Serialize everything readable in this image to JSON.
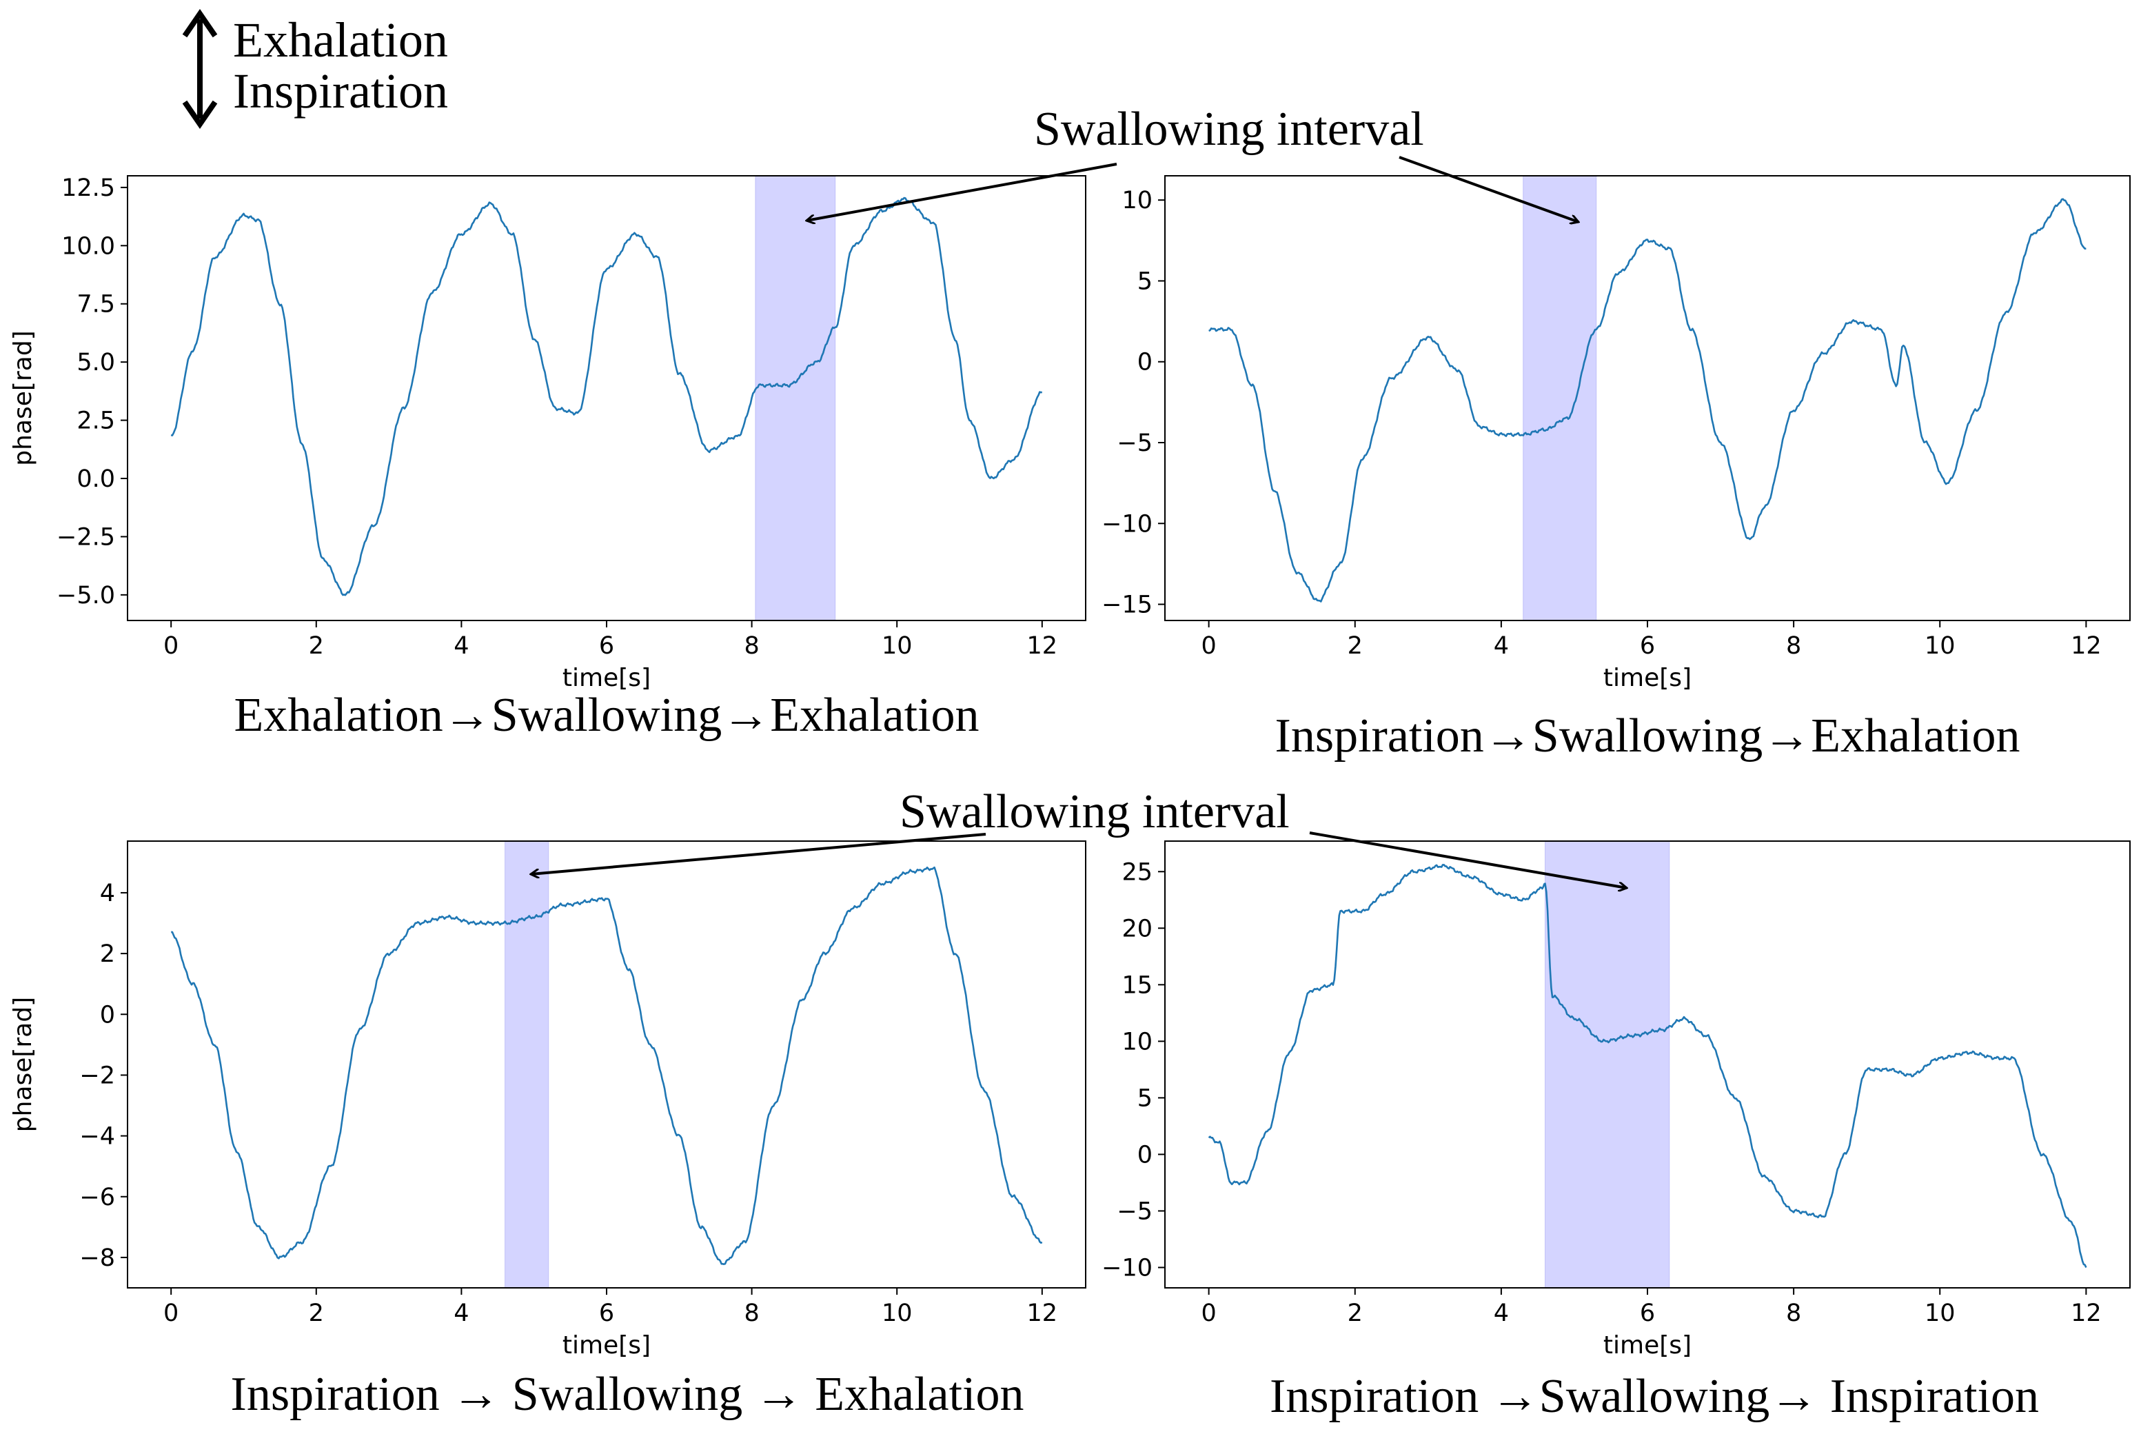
{
  "legend": {
    "up_label": "Exhalation",
    "down_label": "Inspiration"
  },
  "annotations": {
    "top": "Swallowing interval",
    "bottom": "Swallowing interval"
  },
  "colors": {
    "line": "#1f77b4",
    "shade": "#aaaaff"
  },
  "chart_data": [
    {
      "id": "tl",
      "type": "line",
      "caption": "Exhalation→Swallowing→Exhalation",
      "xlabel": "time[s]",
      "ylabel": "phase[rad]",
      "xlim": [
        -0.6,
        12.6
      ],
      "ylim": [
        -6.1,
        13.0
      ],
      "xticks": [
        0,
        2,
        4,
        6,
        8,
        10,
        12
      ],
      "yticks": [
        -5.0,
        -2.5,
        0.0,
        2.5,
        5.0,
        7.5,
        10.0,
        12.5
      ],
      "ytick_labels": [
        "−5.0",
        "−2.5",
        "0.0",
        "2.5",
        "5.0",
        "7.5",
        "10.0",
        "12.5"
      ],
      "swallow_interval": [
        8.05,
        9.15
      ],
      "series": [
        {
          "name": "phase",
          "x": [
            0,
            0.3,
            0.6,
            1.0,
            1.2,
            1.5,
            1.8,
            2.1,
            2.4,
            2.8,
            3.2,
            3.6,
            4.0,
            4.4,
            4.7,
            5.0,
            5.3,
            5.6,
            6.0,
            6.4,
            6.7,
            7.0,
            7.4,
            7.8,
            8.1,
            8.5,
            8.9,
            9.15,
            9.4,
            9.8,
            10.1,
            10.5,
            10.8,
            11.0,
            11.3,
            11.6,
            12.0
          ],
          "y": [
            1.8,
            5.5,
            9.5,
            11.3,
            11.1,
            7.5,
            1.5,
            -3.5,
            -5.0,
            -2.0,
            3.0,
            8.0,
            10.5,
            11.8,
            10.5,
            6.0,
            3.0,
            2.8,
            9.0,
            10.5,
            9.5,
            4.5,
            1.2,
            1.8,
            4.0,
            4.0,
            5.0,
            6.5,
            10.0,
            11.5,
            12.0,
            11.0,
            6.0,
            2.5,
            0.0,
            0.8,
            3.7
          ]
        }
      ]
    },
    {
      "id": "tr",
      "type": "line",
      "caption": "Inspiration→Swallowing→Exhalation",
      "xlabel": "time[s]",
      "ylabel": "",
      "xlim": [
        -0.6,
        12.6
      ],
      "ylim": [
        -16.0,
        11.5
      ],
      "xticks": [
        0,
        2,
        4,
        6,
        8,
        10,
        12
      ],
      "yticks": [
        -15,
        -10,
        -5,
        0,
        5,
        10
      ],
      "ytick_labels": [
        "−15",
        "−10",
        "−5",
        "0",
        "5",
        "10"
      ],
      "swallow_interval": [
        4.3,
        5.3
      ],
      "series": [
        {
          "name": "phase",
          "x": [
            0,
            0.3,
            0.6,
            0.9,
            1.2,
            1.5,
            1.8,
            2.1,
            2.5,
            3.0,
            3.4,
            3.7,
            4.0,
            4.3,
            4.6,
            4.9,
            5.3,
            5.6,
            6.0,
            6.3,
            6.6,
            7.0,
            7.4,
            7.6,
            8.0,
            8.4,
            8.8,
            9.2,
            9.4,
            9.5,
            9.8,
            10.1,
            10.5,
            10.9,
            11.3,
            11.7,
            12.0
          ],
          "y": [
            2.0,
            2.0,
            -1.5,
            -8.0,
            -13.0,
            -14.8,
            -12.5,
            -6.0,
            -1.0,
            1.5,
            -0.5,
            -4.0,
            -4.5,
            -4.5,
            -4.2,
            -3.5,
            2.0,
            5.5,
            7.5,
            7.0,
            2.0,
            -5.0,
            -11.0,
            -9.0,
            -3.0,
            0.5,
            2.5,
            2.0,
            -1.5,
            1.0,
            -5.0,
            -7.5,
            -3.0,
            3.0,
            8.0,
            10.0,
            7.0
          ]
        }
      ]
    },
    {
      "id": "bl",
      "type": "line",
      "caption": "Inspiration → Swallowing → Exhalation",
      "xlabel": "time[s]",
      "ylabel": "phase[rad]",
      "xlim": [
        -0.6,
        12.6
      ],
      "ylim": [
        -9.0,
        5.7
      ],
      "xticks": [
        0,
        2,
        4,
        6,
        8,
        10,
        12
      ],
      "yticks": [
        -8,
        -6,
        -4,
        -2,
        0,
        2,
        4
      ],
      "ytick_labels": [
        "−8",
        "−6",
        "−4",
        "−2",
        "0",
        "2",
        "4"
      ],
      "swallow_interval": [
        4.6,
        5.2
      ],
      "series": [
        {
          "name": "phase",
          "x": [
            0,
            0.3,
            0.6,
            0.9,
            1.2,
            1.5,
            1.8,
            2.2,
            2.6,
            3.0,
            3.4,
            3.8,
            4.2,
            4.6,
            5.0,
            5.4,
            6.0,
            6.3,
            6.6,
            7.0,
            7.3,
            7.6,
            7.9,
            8.3,
            8.7,
            9.0,
            9.4,
            9.8,
            10.2,
            10.5,
            10.8,
            11.2,
            11.6,
            12.0
          ],
          "y": [
            2.7,
            1.0,
            -1.0,
            -4.5,
            -7.0,
            -8.0,
            -7.5,
            -5.0,
            -0.5,
            2.0,
            3.0,
            3.2,
            3.0,
            3.0,
            3.2,
            3.6,
            3.8,
            1.5,
            -1.0,
            -4.0,
            -7.0,
            -8.2,
            -7.5,
            -3.0,
            0.5,
            2.0,
            3.5,
            4.3,
            4.7,
            4.8,
            2.0,
            -2.5,
            -6.0,
            -7.5
          ]
        }
      ]
    },
    {
      "id": "br",
      "type": "line",
      "caption": "Inspiration →Swallowing→ Inspiration",
      "xlabel": "time[s]",
      "ylabel": "",
      "xlim": [
        -0.6,
        12.6
      ],
      "ylim": [
        -11.8,
        27.7
      ],
      "xticks": [
        0,
        2,
        4,
        6,
        8,
        10,
        12
      ],
      "yticks": [
        -10,
        -5,
        0,
        5,
        10,
        15,
        20,
        25
      ],
      "ytick_labels": [
        "−10",
        "−5",
        "0",
        "5",
        "10",
        "15",
        "20",
        "25"
      ],
      "swallow_interval": [
        4.6,
        6.3
      ],
      "series": [
        {
          "name": "phase",
          "x": [
            0,
            0.15,
            0.3,
            0.5,
            0.8,
            1.1,
            1.4,
            1.7,
            1.8,
            2.1,
            2.4,
            2.8,
            3.2,
            3.6,
            4.0,
            4.3,
            4.55,
            4.6,
            4.7,
            5.0,
            5.4,
            5.8,
            6.2,
            6.5,
            6.8,
            7.2,
            7.6,
            8.0,
            8.4,
            8.7,
            9.0,
            9.3,
            9.6,
            10.0,
            10.4,
            10.8,
            11.0,
            11.4,
            11.8,
            12.0
          ],
          "y": [
            1.5,
            1.0,
            -2.5,
            -2.5,
            2.0,
            9.0,
            14.5,
            15.0,
            21.5,
            21.5,
            23.0,
            25.0,
            25.5,
            24.5,
            23.0,
            22.5,
            23.5,
            24.0,
            14.0,
            12.0,
            10.0,
            10.5,
            11.0,
            12.0,
            10.5,
            5.0,
            -2.0,
            -5.0,
            -5.5,
            0.0,
            7.5,
            7.5,
            7.0,
            8.5,
            9.0,
            8.5,
            8.5,
            0.0,
            -6.0,
            -10.0
          ]
        }
      ]
    }
  ]
}
